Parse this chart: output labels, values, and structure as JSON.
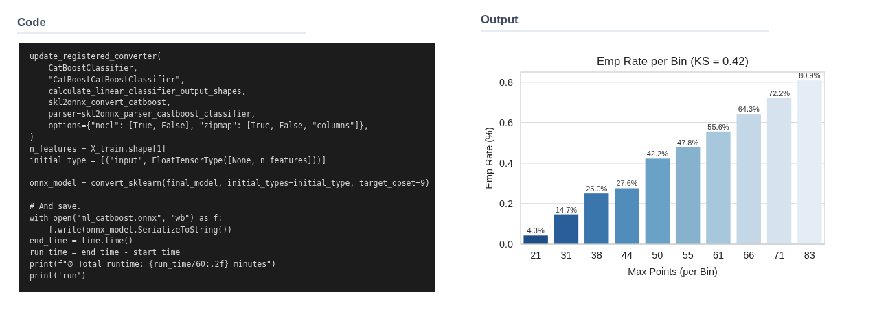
{
  "chart_data": [
    {
      "type": "other",
      "title": "Code",
      "annotations": [
        "update_registered_converter(",
        "    CatBoostClassifier,",
        "    \"CatBoostCatBoostClassifier\",",
        "    calculate_linear_classifier_output_shapes,",
        "    skl2onnx_convert_catboost,",
        "    parser=skl2onnx_parser_castboost_classifier,",
        "    options={\"nocl\": [True, False], \"zipmap\": [True, False, \"columns\"]},",
        ")",
        "n_features = X_train.shape[1]",
        "initial_type = [(\"input\", FloatTensorType([None, n_features]))]",
        "onnx_model = convert_sklearn(final_model, initial_types=initial_type, target_opset=9)",
        "# And save.",
        "with open(\"ml_catboost.onnx\", \"wb\") as f:",
        "    f.write(onnx_model.SerializeToString())",
        "end_time = time.time()",
        "run_time = end_time - start_time",
        "print(f\"⏱ Total runtime: {run_time/60:.2f} minutes\")",
        "print('run')"
      ]
    },
    {
      "type": "bar",
      "title": "Emp Rate per Bin (KS = 0.42)",
      "annotations": [
        "Output"
      ],
      "xlabel": "Max Points (per Bin)",
      "ylabel": "Emp Rate (%)",
      "categories": [
        "21",
        "31",
        "38",
        "44",
        "50",
        "55",
        "61",
        "66",
        "71",
        "83"
      ],
      "values": [
        0.043,
        0.147,
        0.25,
        0.276,
        0.422,
        0.478,
        0.556,
        0.643,
        0.722,
        0.809
      ],
      "colors": [
        "#1f4e87",
        "#285f9a",
        "#3a76ab",
        "#508dbb",
        "#6aa2c7",
        "#86b2cd",
        "#a7c8dc",
        "#c3d7e6",
        "#d6e3ef",
        "#e4edf6"
      ],
      "value_labels": [
        "4.3%",
        "14.7%",
        "25.0%",
        "27.6%",
        "42.2%",
        "47.8%",
        "55.6%",
        "64.3%",
        "72.2%",
        "80.9%"
      ],
      "ylim": [
        0,
        0.85
      ],
      "yticks": [
        {
          "value": 0,
          "label": "0.0"
        },
        0.2,
        0.4,
        0.6,
        0.8
      ],
      "grid": "y"
    }
  ]
}
